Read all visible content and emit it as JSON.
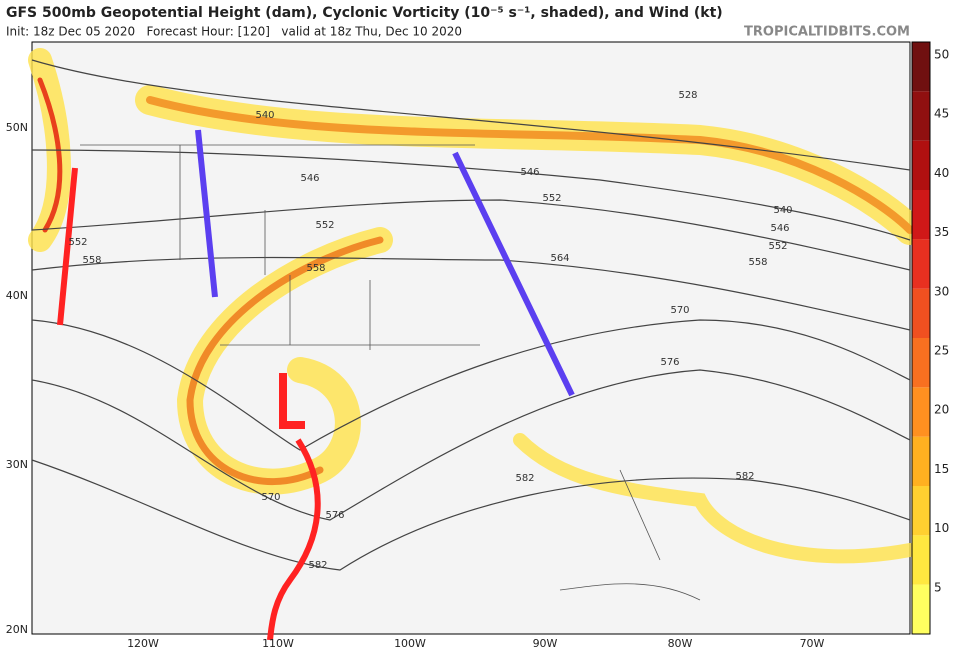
{
  "header": {
    "title": "GFS 500mb Geopotential Height (dam), Cyclonic Vorticity (10⁻⁵ s⁻¹, shaded), and Wind (kt)",
    "subtitle": "Init: 18z Dec 05 2020   Forecast Hour: [120]   valid at 18z Thu, Dec 10 2020",
    "brand": "TROPICALTIDBITS.COM"
  },
  "map": {
    "lat_labels": [
      "50N",
      "40N",
      "30N",
      "20N"
    ],
    "lon_labels": [
      "120W",
      "110W",
      "100W",
      "90W",
      "80W",
      "70W"
    ],
    "contour_labels": [
      "540",
      "528",
      "546",
      "546",
      "552",
      "552",
      "552",
      "558",
      "558",
      "564",
      "558",
      "540",
      "546",
      "552",
      "570",
      "576",
      "582",
      "582",
      "570",
      "576",
      "582"
    ]
  },
  "colorbar": {
    "labels": [
      "50",
      "45",
      "40",
      "35",
      "30",
      "25",
      "20",
      "15",
      "10",
      "5"
    ]
  }
}
